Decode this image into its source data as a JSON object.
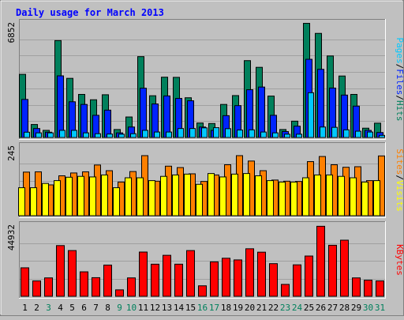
{
  "chart_data": [
    {
      "type": "bar",
      "title": "Daily usage for March 2013",
      "ytick_max_label": "6852",
      "ylim": [
        0,
        6852
      ],
      "categories": [
        "1",
        "2",
        "3",
        "4",
        "5",
        "6",
        "7",
        "8",
        "9",
        "10",
        "11",
        "12",
        "13",
        "14",
        "15",
        "16",
        "17",
        "18",
        "19",
        "20",
        "21",
        "22",
        "23",
        "24",
        "25",
        "26",
        "27",
        "28",
        "29",
        "30",
        "31"
      ],
      "series": [
        {
          "name": "Hits",
          "color": "#00805c",
          "values": [
            3800,
            800,
            450,
            5820,
            3560,
            2600,
            2280,
            2580,
            500,
            1250,
            4860,
            2520,
            3630,
            3620,
            2400,
            890,
            860,
            2000,
            2530,
            4620,
            4220,
            2500,
            500,
            1000,
            6850,
            6250,
            4900,
            3700,
            2600,
            580,
            880
          ]
        },
        {
          "name": "Files",
          "color": "#0024ff",
          "values": [
            2300,
            560,
            340,
            3710,
            2160,
            2000,
            1350,
            1660,
            300,
            650,
            2970,
            2030,
            2510,
            2360,
            2220,
            650,
            450,
            1330,
            1930,
            2880,
            3040,
            1350,
            380,
            700,
            4700,
            4100,
            2980,
            2560,
            1900,
            450,
            320
          ]
        },
        {
          "name": "Pages",
          "color": "#00c8ff",
          "values": [
            340,
            300,
            300,
            450,
            450,
            300,
            250,
            230,
            220,
            250,
            450,
            350,
            350,
            560,
            560,
            600,
            610,
            550,
            470,
            480,
            350,
            300,
            220,
            220,
            2700,
            650,
            630,
            480,
            400,
            350,
            150
          ]
        }
      ],
      "right_label_parts": [
        "Pages",
        "/",
        "Files",
        "/",
        "Hits"
      ],
      "right_label_colors": [
        "#00c8ff",
        "#000000",
        "#0024ff",
        "#000000",
        "#00805c"
      ]
    },
    {
      "type": "bar",
      "ytick_max_label": "245",
      "ylim": [
        0,
        245
      ],
      "categories": [
        "1",
        "2",
        "3",
        "4",
        "5",
        "6",
        "7",
        "8",
        "9",
        "10",
        "11",
        "12",
        "13",
        "14",
        "15",
        "16",
        "17",
        "18",
        "19",
        "20",
        "21",
        "22",
        "23",
        "24",
        "25",
        "26",
        "27",
        "28",
        "29",
        "30",
        "31"
      ],
      "series": [
        {
          "name": "Sites",
          "color": "#ff8000",
          "values": [
            155,
            156,
            110,
            142,
            152,
            156,
            180,
            160,
            120,
            157,
            213,
            123,
            176,
            171,
            149,
            122,
            145,
            181,
            213,
            194,
            160,
            127,
            123,
            122,
            192,
            210,
            181,
            172,
            174,
            125,
            212
          ]
        },
        {
          "name": "Visits",
          "color": "#ffff00",
          "values": [
            100,
            100,
            115,
            125,
            137,
            140,
            138,
            145,
            100,
            135,
            135,
            125,
            140,
            145,
            148,
            112,
            150,
            138,
            148,
            150,
            142,
            125,
            120,
            120,
            135,
            145,
            145,
            140,
            135,
            120,
            125
          ]
        }
      ],
      "right_label_parts": [
        "Sites",
        "/",
        "Visits"
      ],
      "right_label_colors": [
        "#ff8000",
        "#000000",
        "#ffff00"
      ]
    },
    {
      "type": "bar",
      "ytick_max_label": "44932",
      "ylim": [
        0,
        44932
      ],
      "categories": [
        "1",
        "2",
        "3",
        "4",
        "5",
        "6",
        "7",
        "8",
        "9",
        "10",
        "11",
        "12",
        "13",
        "14",
        "15",
        "16",
        "17",
        "18",
        "19",
        "20",
        "21",
        "22",
        "23",
        "24",
        "25",
        "26",
        "27",
        "28",
        "29",
        "30",
        "31"
      ],
      "series": [
        {
          "name": "KBytes",
          "color": "#ff0000",
          "values": [
            18250,
            9970,
            11880,
            32300,
            29150,
            15710,
            12020,
            19980,
            4320,
            11880,
            28210,
            20540,
            26150,
            20550,
            29150,
            6880,
            22010,
            24300,
            23250,
            30290,
            28130,
            20880,
            7770,
            20130,
            25700,
            44500,
            32500,
            35700,
            11880,
            10420,
            9980
          ]
        }
      ],
      "right_label_parts": [
        "KBytes"
      ],
      "right_label_colors": [
        "#ff0000"
      ]
    }
  ],
  "weekend_days": [
    3,
    9,
    10,
    16,
    17,
    23,
    24,
    30,
    31
  ],
  "colors": {
    "background": "#c0c0c0",
    "grid": "#a0a0a0",
    "title": "#0000ff",
    "weekday_label": "#000000",
    "weekend_label": "#00805c"
  }
}
